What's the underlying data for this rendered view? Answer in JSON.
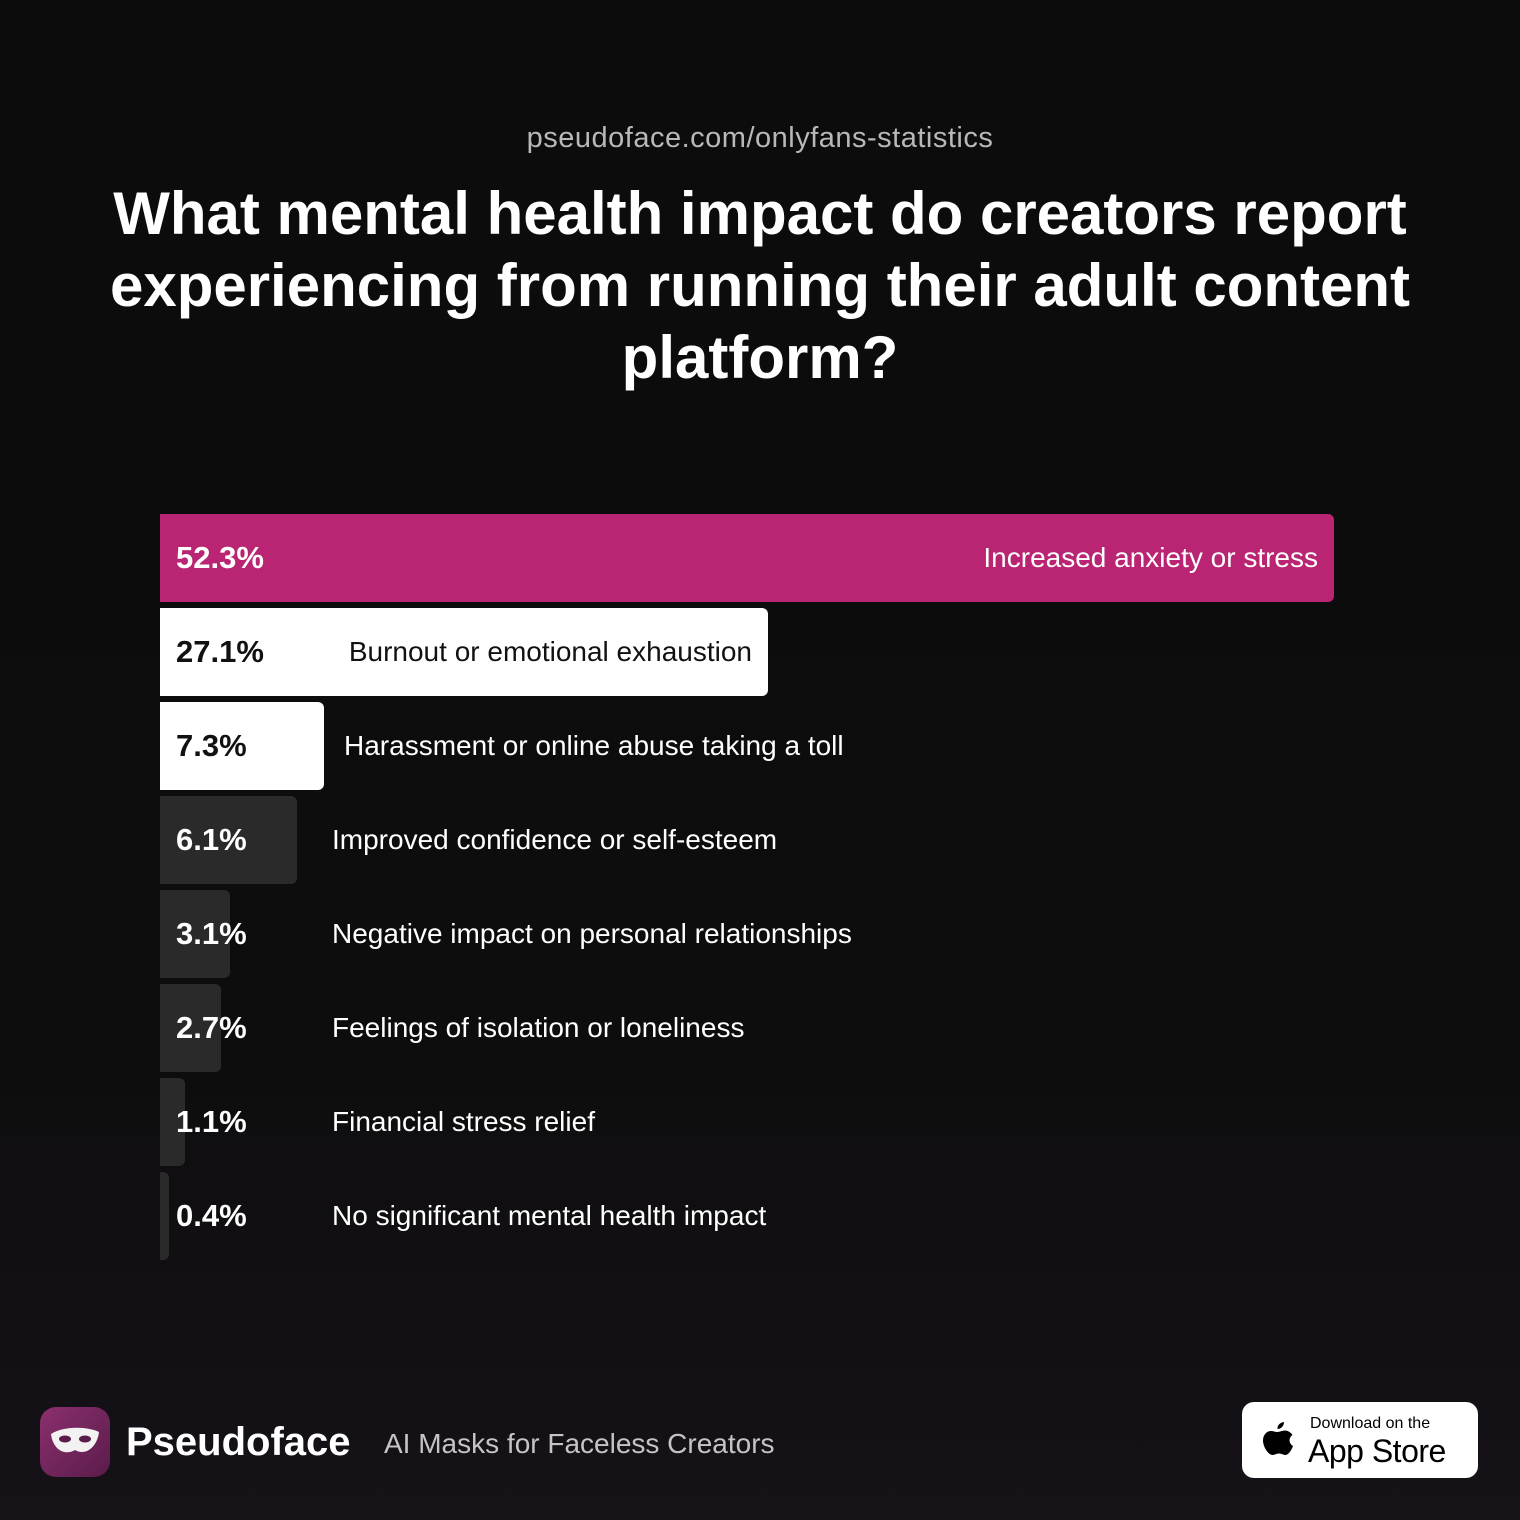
{
  "source_url": "pseudoface.com/onlyfans-statistics",
  "chart_data": {
    "type": "bar",
    "orientation": "horizontal",
    "title": "What mental health impact do creators report experiencing from running their adult content platform?",
    "categories": [
      "Increased anxiety or stress",
      "Burnout or emotional exhaustion",
      "Harassment or online abuse taking a toll",
      "Improved confidence or self-esteem",
      "Negative impact on personal relationships",
      "Feelings of isolation or loneliness",
      "Financial stress relief",
      "No significant mental health impact"
    ],
    "values": [
      52.3,
      27.1,
      7.3,
      6.1,
      3.1,
      2.7,
      1.1,
      0.4
    ],
    "value_labels": [
      "52.3%",
      "27.1%",
      "7.3%",
      "6.1%",
      "3.1%",
      "2.7%",
      "1.1%",
      "0.4%"
    ],
    "bar_colors": [
      "#b92573",
      "#ffffff",
      "#ffffff",
      "#2a2a2a",
      "#2a2a2a",
      "#2a2a2a",
      "#2a2a2a",
      "#2a2a2a"
    ],
    "value_colors": [
      "#ffffff",
      "#111111",
      "#111111",
      "#ffffff",
      "#ffffff",
      "#ffffff",
      "#ffffff",
      "#ffffff"
    ]
  },
  "footer": {
    "brand_name": "Pseudoface",
    "tagline": "AI Masks for Faceless Creators",
    "logo_icon": "mask-icon",
    "badge": {
      "icon": "apple-icon",
      "line1": "Download on the",
      "line2": "App Store"
    }
  }
}
